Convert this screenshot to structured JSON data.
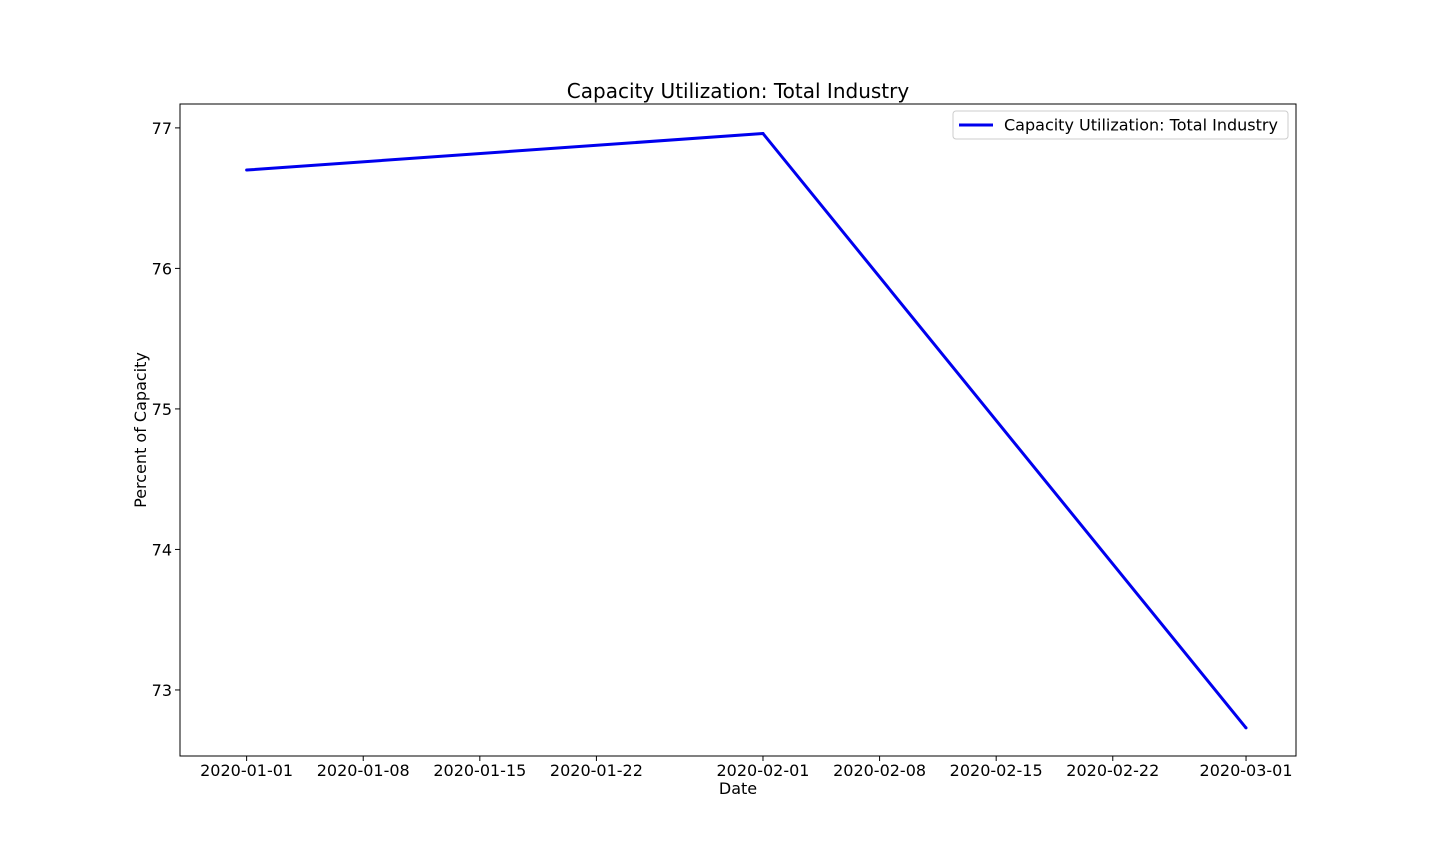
{
  "chart_data": {
    "type": "line",
    "title": "Capacity Utilization: Total Industry",
    "xlabel": "Date",
    "ylabel": "Percent of Capacity",
    "x": [
      "2020-01-01",
      "2020-02-01",
      "2020-03-01"
    ],
    "series": [
      {
        "name": "Capacity Utilization: Total Industry",
        "values": [
          76.7,
          76.96,
          72.73
        ],
        "color": "#0000ee"
      }
    ],
    "xticks": [
      "2020-01-01",
      "2020-01-08",
      "2020-01-15",
      "2020-01-22",
      "2020-02-01",
      "2020-02-08",
      "2020-02-15",
      "2020-02-22",
      "2020-03-01"
    ],
    "yticks": [
      73,
      74,
      75,
      76,
      77
    ],
    "xlim": [
      "2019-12-28",
      "2020-03-04"
    ],
    "ylim": [
      72.53,
      77.17
    ],
    "grid": false,
    "legend_position": "top-right"
  }
}
